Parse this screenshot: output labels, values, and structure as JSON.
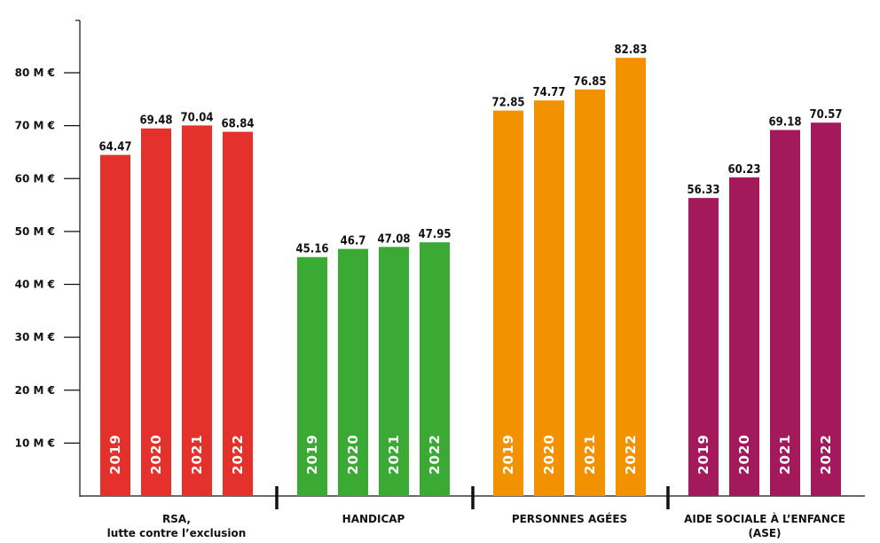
{
  "chart_data": {
    "type": "bar",
    "ylim": [
      0,
      90
    ],
    "y_ticks": [
      {
        "value": 10,
        "label": "10 M €"
      },
      {
        "value": 20,
        "label": "20 M €"
      },
      {
        "value": 30,
        "label": "30 M €"
      },
      {
        "value": 40,
        "label": "40 M €"
      },
      {
        "value": 50,
        "label": "50 M €"
      },
      {
        "value": 60,
        "label": "60 M €"
      },
      {
        "value": 70,
        "label": "70 M €"
      },
      {
        "value": 80,
        "label": "80 M €"
      }
    ],
    "groups": [
      {
        "label_lines": [
          "RSA,",
          "lutte contre l’exclusion"
        ],
        "color": "#E5312B",
        "bars": [
          {
            "year": "2019",
            "value": 64.47,
            "label": "64.47"
          },
          {
            "year": "2020",
            "value": 69.48,
            "label": "69.48"
          },
          {
            "year": "2021",
            "value": 70.04,
            "label": "70.04"
          },
          {
            "year": "2022",
            "value": 68.84,
            "label": "68.84"
          }
        ]
      },
      {
        "label_lines": [
          "HANDICAP"
        ],
        "color": "#3AAA35",
        "bars": [
          {
            "year": "2019",
            "value": 45.16,
            "label": "45.16"
          },
          {
            "year": "2020",
            "value": 46.7,
            "label": "46.7"
          },
          {
            "year": "2021",
            "value": 47.08,
            "label": "47.08"
          },
          {
            "year": "2022",
            "value": 47.95,
            "label": "47.95"
          }
        ]
      },
      {
        "label_lines": [
          "PERSONNES AGÉES"
        ],
        "color": "#F39200",
        "bars": [
          {
            "year": "2019",
            "value": 72.85,
            "label": "72.85"
          },
          {
            "year": "2020",
            "value": 74.77,
            "label": "74.77"
          },
          {
            "year": "2021",
            "value": 76.85,
            "label": "76.85"
          },
          {
            "year": "2022",
            "value": 82.83,
            "label": "82.83"
          }
        ]
      },
      {
        "label_lines": [
          "AIDE SOCIALE À L’ENFANCE",
          "(ASE)"
        ],
        "color": "#A3195B",
        "bars": [
          {
            "year": "2019",
            "value": 56.33,
            "label": "56.33"
          },
          {
            "year": "2020",
            "value": 60.23,
            "label": "60.23"
          },
          {
            "year": "2021",
            "value": 69.18,
            "label": "69.18"
          },
          {
            "year": "2022",
            "value": 70.57,
            "label": "70.57"
          }
        ]
      }
    ]
  }
}
